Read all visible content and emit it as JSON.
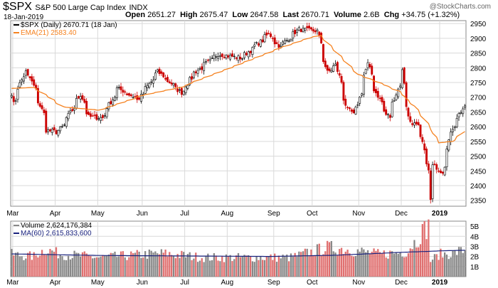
{
  "header": {
    "symbol": "$SPX",
    "description": "S&P 500 Large Cap Index",
    "exchange": "INDX",
    "date": "18-Jan-2019",
    "open_label": "Open",
    "open": "2651.27",
    "high_label": "High",
    "high": "2675.47",
    "low_label": "Low",
    "low": "2647.58",
    "last_label": "Last",
    "last": "2670.71",
    "volume_label": "Volume",
    "volume": "2.6B",
    "chg_label": "Chg",
    "chg": "+34.75 (+1.32%)",
    "credit": "@StockCharts.com"
  },
  "legend": {
    "price": "$SPX (Daily) 2670.71 (18 Jan)",
    "ema": "EMA(21) 2583.40",
    "volume": "Volume 2,624,176,384",
    "ma": "MA(60) 2,615,833,600"
  },
  "colors": {
    "up": "#000000",
    "down": "#cc0000",
    "ema": "#f58220",
    "volume_up": "#888888",
    "volume_down": "#e07070",
    "ma": "#1a237e",
    "grid": "#d9d9d9"
  },
  "chart_data": [
    {
      "type": "candlestick",
      "title": "$SPX (Daily) 2670.71 (18 Jan)",
      "ylim": [
        2330,
        2960
      ],
      "y_ticks": [
        2350,
        2400,
        2450,
        2500,
        2550,
        2600,
        2650,
        2700,
        2750,
        2800,
        2850,
        2900,
        2950
      ],
      "x_ticks": [
        "Mar",
        "Apr",
        "May",
        "Jun",
        "Jul",
        "Aug",
        "Sep",
        "Oct",
        "Nov",
        "Dec",
        "2019"
      ],
      "grid": true,
      "legend_position": "top-left",
      "close_anchors": [
        [
          "2018-02-28",
          2714
        ],
        [
          "2018-03-01",
          2678
        ],
        [
          "2018-03-09",
          2786
        ],
        [
          "2018-03-13",
          2765
        ],
        [
          "2018-03-22",
          2644
        ],
        [
          "2018-03-23",
          2588
        ],
        [
          "2018-04-02",
          2582
        ],
        [
          "2018-04-06",
          2604
        ],
        [
          "2018-04-18",
          2708
        ],
        [
          "2018-04-24",
          2634
        ],
        [
          "2018-05-03",
          2630
        ],
        [
          "2018-05-14",
          2730
        ],
        [
          "2018-05-29",
          2690
        ],
        [
          "2018-06-12",
          2786
        ],
        [
          "2018-06-28",
          2716
        ],
        [
          "2018-07-09",
          2784
        ],
        [
          "2018-07-25",
          2846
        ],
        [
          "2018-08-10",
          2833
        ],
        [
          "2018-08-29",
          2914
        ],
        [
          "2018-09-07",
          2871
        ],
        [
          "2018-09-20",
          2930
        ],
        [
          "2018-10-03",
          2925
        ],
        [
          "2018-10-10",
          2785
        ],
        [
          "2018-10-16",
          2809
        ],
        [
          "2018-10-24",
          2656
        ],
        [
          "2018-10-29",
          2641
        ],
        [
          "2018-11-07",
          2813
        ],
        [
          "2018-11-12",
          2726
        ],
        [
          "2018-11-20",
          2641
        ],
        [
          "2018-11-23",
          2633
        ],
        [
          "2018-12-03",
          2790
        ],
        [
          "2018-12-07",
          2633
        ],
        [
          "2018-12-14",
          2599
        ],
        [
          "2018-12-18",
          2546
        ],
        [
          "2018-12-24",
          2351
        ],
        [
          "2018-12-26",
          2467
        ],
        [
          "2019-01-03",
          2448
        ],
        [
          "2019-01-10",
          2596
        ],
        [
          "2019-01-18",
          2670.71
        ]
      ],
      "ema_series": {
        "name": "EMA(21)",
        "last": 2583.4,
        "anchors": [
          [
            "2018-02-28",
            2730
          ],
          [
            "2018-03-15",
            2733
          ],
          [
            "2018-04-06",
            2667
          ],
          [
            "2018-05-01",
            2656
          ],
          [
            "2018-05-31",
            2705
          ],
          [
            "2018-06-29",
            2735
          ],
          [
            "2018-07-31",
            2795
          ],
          [
            "2018-08-31",
            2855
          ],
          [
            "2018-09-28",
            2902
          ],
          [
            "2018-10-05",
            2910
          ],
          [
            "2018-10-31",
            2778
          ],
          [
            "2018-11-30",
            2720
          ],
          [
            "2018-12-12",
            2670
          ],
          [
            "2018-12-31",
            2545
          ],
          [
            "2019-01-10",
            2550
          ],
          [
            "2019-01-18",
            2583.4
          ]
        ]
      }
    },
    {
      "type": "bar",
      "title": "Volume 2,624,176,384",
      "ylim": [
        0,
        5500000000
      ],
      "y_ticks": [
        "1B",
        "2B",
        "3B",
        "4B",
        "5B"
      ],
      "grid": true,
      "volume_anchors": [
        [
          "2018-02-28",
          2.2
        ],
        [
          "2018-03-15",
          2.0
        ],
        [
          "2018-03-23",
          2.7
        ],
        [
          "2018-04-06",
          2.2
        ],
        [
          "2018-05-01",
          1.9
        ],
        [
          "2018-06-15",
          2.3
        ],
        [
          "2018-07-15",
          1.9
        ],
        [
          "2018-08-15",
          1.9
        ],
        [
          "2018-09-15",
          1.9
        ],
        [
          "2018-10-10",
          2.9
        ],
        [
          "2018-10-24",
          2.7
        ],
        [
          "2018-11-15",
          2.2
        ],
        [
          "2018-12-07",
          2.5
        ],
        [
          "2018-12-21",
          5.0
        ],
        [
          "2018-12-24",
          1.6
        ],
        [
          "2018-12-31",
          2.2
        ],
        [
          "2019-01-10",
          2.3
        ],
        [
          "2019-01-18",
          2.62
        ]
      ],
      "ma_series": {
        "name": "MA(60)",
        "last": 2615833600,
        "anchors": [
          [
            "2018-02-28",
            2.25
          ],
          [
            "2018-05-01",
            2.1
          ],
          [
            "2018-07-01",
            2.05
          ],
          [
            "2018-09-01",
            2.0
          ],
          [
            "2018-10-15",
            2.12
          ],
          [
            "2018-11-30",
            2.4
          ],
          [
            "2018-12-31",
            2.55
          ],
          [
            "2019-01-18",
            2.616
          ]
        ]
      }
    }
  ]
}
